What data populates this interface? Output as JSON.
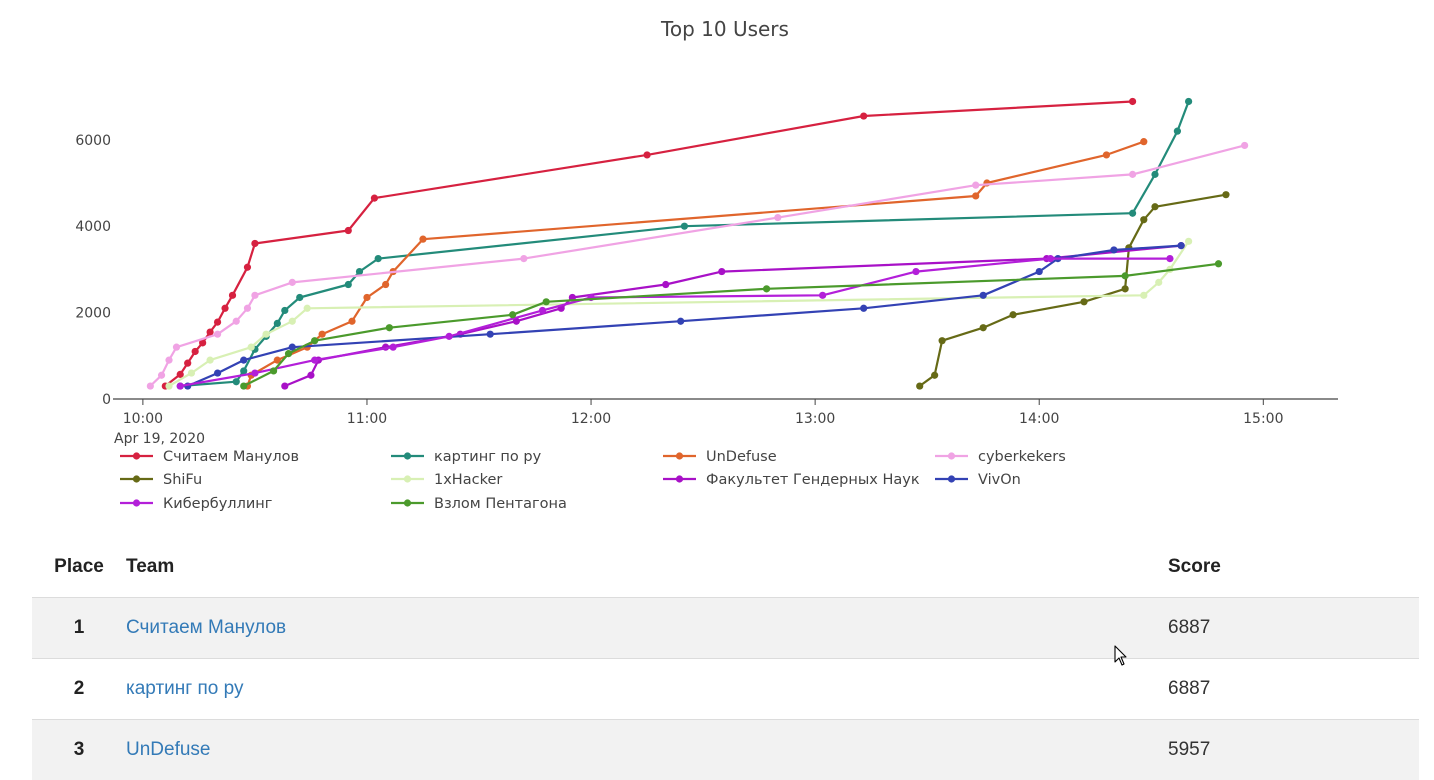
{
  "chart_data": {
    "type": "line",
    "title": "Top 10 Users",
    "x_axis": {
      "ticks": [
        "10:00",
        "11:00",
        "12:00",
        "13:00",
        "14:00",
        "15:00"
      ],
      "date_label": "Apr 19, 2020",
      "range": [
        "09:52",
        "15:20"
      ]
    },
    "y_axis": {
      "ticks": [
        "0",
        "2000",
        "4000",
        "6000"
      ],
      "range": [
        0,
        7500
      ]
    },
    "grid": false,
    "legend_position": "bottom",
    "series": [
      {
        "name": "Считаем Манулов",
        "color": "#d62140",
        "points": [
          [
            "10:06",
            300
          ],
          [
            "10:10",
            570
          ],
          [
            "10:12",
            830
          ],
          [
            "10:14",
            1100
          ],
          [
            "10:16",
            1300
          ],
          [
            "10:18",
            1550
          ],
          [
            "10:20",
            1780
          ],
          [
            "10:22",
            2100
          ],
          [
            "10:24",
            2400
          ],
          [
            "10:28",
            3050
          ],
          [
            "10:30",
            3600
          ],
          [
            "10:55",
            3900
          ],
          [
            "11:02",
            4650
          ],
          [
            "12:15",
            5650
          ],
          [
            "13:13",
            6550
          ],
          [
            "14:25",
            6887
          ]
        ]
      },
      {
        "name": "картинг по ру",
        "color": "#238b7a",
        "points": [
          [
            "10:10",
            300
          ],
          [
            "10:25",
            400
          ],
          [
            "10:27",
            650
          ],
          [
            "10:30",
            1150
          ],
          [
            "10:33",
            1450
          ],
          [
            "10:36",
            1750
          ],
          [
            "10:38",
            2050
          ],
          [
            "10:42",
            2350
          ],
          [
            "10:55",
            2650
          ],
          [
            "10:58",
            2950
          ],
          [
            "11:03",
            3250
          ],
          [
            "12:25",
            4000
          ],
          [
            "14:25",
            4300
          ],
          [
            "14:31",
            5200
          ],
          [
            "14:37",
            6200
          ],
          [
            "14:40",
            6887
          ]
        ]
      },
      {
        "name": "UnDefuse",
        "color": "#e0652c",
        "points": [
          [
            "10:28",
            300
          ],
          [
            "10:29",
            550
          ],
          [
            "10:36",
            900
          ],
          [
            "10:44",
            1200
          ],
          [
            "10:48",
            1500
          ],
          [
            "10:56",
            1800
          ],
          [
            "11:00",
            2350
          ],
          [
            "11:05",
            2650
          ],
          [
            "11:07",
            2950
          ],
          [
            "11:15",
            3700
          ],
          [
            "13:43",
            4700
          ],
          [
            "13:46",
            5000
          ],
          [
            "14:18",
            5650
          ],
          [
            "14:28",
            5957
          ]
        ]
      },
      {
        "name": "cyberkekers",
        "color": "#f0a3e4",
        "points": [
          [
            "10:02",
            300
          ],
          [
            "10:05",
            550
          ],
          [
            "10:07",
            900
          ],
          [
            "10:09",
            1200
          ],
          [
            "10:20",
            1500
          ],
          [
            "10:25",
            1800
          ],
          [
            "10:28",
            2100
          ],
          [
            "10:30",
            2400
          ],
          [
            "10:40",
            2700
          ],
          [
            "11:42",
            3250
          ],
          [
            "12:50",
            4200
          ],
          [
            "13:43",
            4950
          ],
          [
            "14:25",
            5200
          ],
          [
            "14:55",
            5870
          ]
        ]
      },
      {
        "name": "ShiFu",
        "color": "#666a16",
        "points": [
          [
            "13:28",
            300
          ],
          [
            "13:32",
            550
          ],
          [
            "13:34",
            1350
          ],
          [
            "13:45",
            1650
          ],
          [
            "13:53",
            1950
          ],
          [
            "14:12",
            2250
          ],
          [
            "14:23",
            2550
          ],
          [
            "14:24",
            3500
          ],
          [
            "14:28",
            4150
          ],
          [
            "14:31",
            4450
          ],
          [
            "14:50",
            4730
          ]
        ]
      },
      {
        "name": "1xHacker",
        "color": "#d8f0b4",
        "points": [
          [
            "10:07",
            300
          ],
          [
            "10:13",
            600
          ],
          [
            "10:18",
            900
          ],
          [
            "10:29",
            1200
          ],
          [
            "10:33",
            1500
          ],
          [
            "10:40",
            1800
          ],
          [
            "10:44",
            2100
          ],
          [
            "14:28",
            2400
          ],
          [
            "14:32",
            2700
          ],
          [
            "14:35",
            3000
          ],
          [
            "14:40",
            3650
          ]
        ]
      },
      {
        "name": "Факультет Гендерных Наук",
        "color": "#a811c7",
        "points": [
          [
            "10:38",
            300
          ],
          [
            "10:45",
            550
          ],
          [
            "10:47",
            900
          ],
          [
            "11:05",
            1200
          ],
          [
            "11:25",
            1500
          ],
          [
            "11:40",
            1800
          ],
          [
            "11:52",
            2100
          ],
          [
            "11:55",
            2350
          ],
          [
            "12:20",
            2650
          ],
          [
            "12:35",
            2950
          ],
          [
            "14:02",
            3250
          ],
          [
            "14:38",
            3550
          ]
        ]
      },
      {
        "name": "VivOn",
        "color": "#3342b4",
        "points": [
          [
            "10:12",
            300
          ],
          [
            "10:20",
            600
          ],
          [
            "10:27",
            900
          ],
          [
            "10:40",
            1200
          ],
          [
            "11:33",
            1500
          ],
          [
            "12:24",
            1800
          ],
          [
            "13:13",
            2100
          ],
          [
            "13:45",
            2400
          ],
          [
            "14:00",
            2950
          ],
          [
            "14:05",
            3250
          ],
          [
            "14:20",
            3450
          ],
          [
            "14:38",
            3550
          ]
        ]
      },
      {
        "name": "Кибербуллинг",
        "color": "#b31fd9",
        "points": [
          [
            "10:10",
            300
          ],
          [
            "10:30",
            600
          ],
          [
            "10:46",
            900
          ],
          [
            "11:07",
            1200
          ],
          [
            "11:22",
            1450
          ],
          [
            "11:47",
            2050
          ],
          [
            "12:00",
            2350
          ],
          [
            "13:02",
            2400
          ],
          [
            "13:27",
            2950
          ],
          [
            "14:03",
            3250
          ],
          [
            "14:35",
            3250
          ]
        ]
      },
      {
        "name": "Взлом Пентагона",
        "color": "#4b9a2c",
        "points": [
          [
            "10:27",
            300
          ],
          [
            "10:35",
            650
          ],
          [
            "10:39",
            1050
          ],
          [
            "10:46",
            1350
          ],
          [
            "11:06",
            1650
          ],
          [
            "11:39",
            1950
          ],
          [
            "11:48",
            2250
          ],
          [
            "12:47",
            2550
          ],
          [
            "14:23",
            2850
          ],
          [
            "14:48",
            3130
          ]
        ]
      }
    ]
  },
  "scoreboard": {
    "columns": {
      "place": "Place",
      "team": "Team",
      "score": "Score"
    },
    "rows": [
      {
        "place": "1",
        "team": "Считаем Манулов",
        "score": "6887"
      },
      {
        "place": "2",
        "team": "картинг по ру",
        "score": "6887"
      },
      {
        "place": "3",
        "team": "UnDefuse",
        "score": "5957"
      }
    ]
  }
}
